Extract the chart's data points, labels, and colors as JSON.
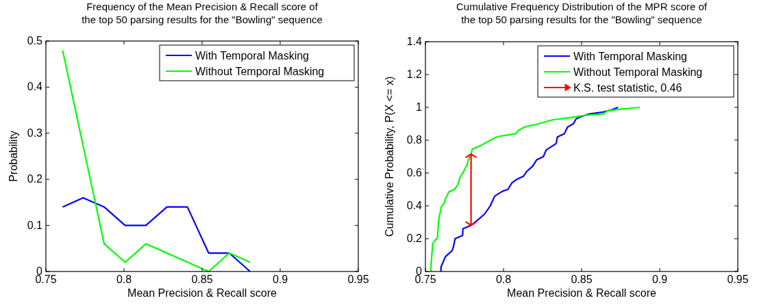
{
  "chart_data": [
    {
      "type": "line",
      "title": "Frequency of the Mean Precision & Recall score of\nthe top 50 parsing results for the \"Bowling\" sequence",
      "xlabel": "Mean Precision & Recall score",
      "ylabel": "Probability",
      "xlim": [
        0.75,
        0.95
      ],
      "xticks": [
        0.75,
        0.8,
        0.85,
        0.9,
        0.95
      ],
      "ylim": [
        0,
        0.5
      ],
      "yticks": [
        0,
        0.1,
        0.2,
        0.3,
        0.4,
        0.5
      ],
      "grid": false,
      "legend": "top right",
      "series": [
        {
          "name": "With Temporal Masking",
          "color": "#0000ff",
          "x": [
            0.7607,
            0.7738,
            0.7873,
            0.8007,
            0.814,
            0.8275,
            0.8406,
            0.8542,
            0.8674,
            0.8807
          ],
          "values": [
            0.14,
            0.16,
            0.14,
            0.1,
            0.1,
            0.14,
            0.14,
            0.04,
            0.04,
            0
          ]
        },
        {
          "name": "Without Temporal Masking",
          "color": "#00ff00",
          "x": [
            0.7607,
            0.7873,
            0.8007,
            0.814,
            0.8542,
            0.8674,
            0.8807
          ],
          "values": [
            0.48,
            0.06,
            0.02,
            0.06,
            0,
            0.04,
            0.02
          ]
        }
      ]
    },
    {
      "type": "line",
      "title": "Cumulative Frequency Distribution of the MPR score of\nthe top 50 parsing results for the \"Bowling\" sequence",
      "xlabel": "Mean Precision & Recall score",
      "ylabel": "Cumulative Probability, P(X <= x)",
      "xlim": [
        0.75,
        0.95
      ],
      "xticks": [
        0.75,
        0.8,
        0.85,
        0.9,
        0.95
      ],
      "ylim": [
        0,
        1.4
      ],
      "yticks": [
        0,
        0.2,
        0.4,
        0.6,
        0.8,
        1,
        1.2,
        1.4
      ],
      "grid": false,
      "legend": "top right",
      "series": [
        {
          "name": "With Temporal Masking",
          "color": "#0000ff",
          "x": [
            0.7599,
            0.76,
            0.7628,
            0.765,
            0.767,
            0.768,
            0.769,
            0.7738,
            0.774,
            0.779,
            0.783,
            0.7879,
            0.7915,
            0.7944,
            0.7996,
            0.8028,
            0.8054,
            0.8083,
            0.8127,
            0.8149,
            0.8185,
            0.8212,
            0.8255,
            0.8273,
            0.8337,
            0.8345,
            0.839,
            0.841,
            0.8447,
            0.8465,
            0.85,
            0.855,
            0.8638,
            0.8697,
            0.8733
          ],
          "values": [
            0,
            0.028,
            0.09,
            0.11,
            0.125,
            0.153,
            0.2,
            0.22,
            0.26,
            0.28,
            0.31,
            0.35,
            0.4,
            0.46,
            0.49,
            0.5,
            0.54,
            0.56,
            0.58,
            0.61,
            0.64,
            0.68,
            0.7,
            0.74,
            0.78,
            0.82,
            0.84,
            0.88,
            0.9,
            0.93,
            0.945,
            0.96,
            0.972,
            0.986,
            1
          ]
        },
        {
          "name": "Without Temporal Masking",
          "color": "#00ff00",
          "x": [
            0.7535,
            0.7537,
            0.7547,
            0.7566,
            0.7576,
            0.7586,
            0.7602,
            0.762,
            0.7627,
            0.765,
            0.7686,
            0.7708,
            0.772,
            0.7745,
            0.7767,
            0.7774,
            0.7792,
            0.78,
            0.7847,
            0.7905,
            0.7963,
            0.808,
            0.8095,
            0.8139,
            0.8226,
            0.8314,
            0.8431,
            0.8518,
            0.8642,
            0.8664,
            0.8752,
            0.8872
          ],
          "values": [
            0,
            0.055,
            0.17,
            0.195,
            0.2,
            0.32,
            0.395,
            0.415,
            0.44,
            0.486,
            0.5,
            0.53,
            0.57,
            0.61,
            0.65,
            0.68,
            0.715,
            0.746,
            0.764,
            0.794,
            0.822,
            0.84,
            0.86,
            0.882,
            0.9,
            0.924,
            0.938,
            0.951,
            0.961,
            0.979,
            0.989,
            1
          ]
        }
      ],
      "ref_lines": [
        {
          "axis": "x",
          "value": 0.7792,
          "label": "K.S. test statistic, 0.46",
          "color": "#ff0000"
        }
      ]
    }
  ]
}
